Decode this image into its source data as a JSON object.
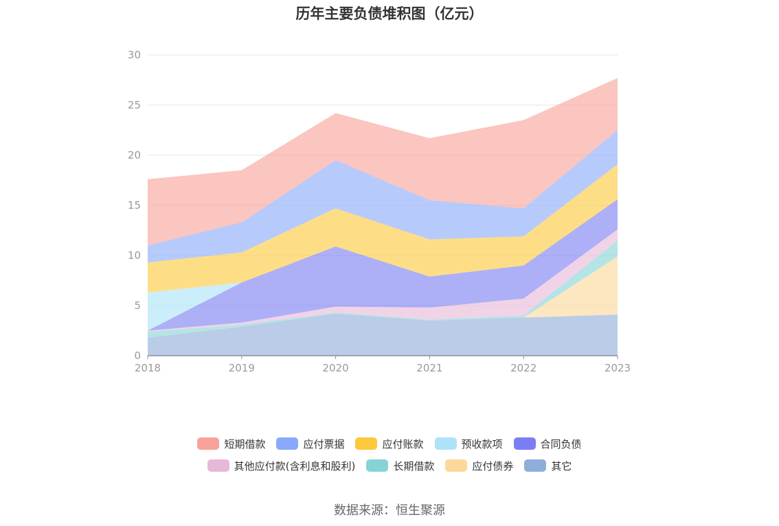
{
  "chart_data": {
    "type": "area",
    "stacked": true,
    "title": "历年主要负债堆积图（亿元）",
    "x": [
      "2018",
      "2019",
      "2020",
      "2021",
      "2022",
      "2023"
    ],
    "ylim": [
      0,
      30
    ],
    "yticks": [
      "0",
      "5",
      "10",
      "15",
      "20",
      "25",
      "30"
    ],
    "grid": true,
    "legend_position": "bottom",
    "series": [
      {
        "name": "其它",
        "color": "#8fadd9",
        "values": [
          1.8,
          2.9,
          4.2,
          3.5,
          3.8,
          4.1
        ]
      },
      {
        "name": "应付债券",
        "color": "#fcd999",
        "values": [
          0,
          0,
          0,
          0,
          0,
          5.8
        ]
      },
      {
        "name": "长期借款",
        "color": "#86d3d6",
        "values": [
          0.6,
          0.2,
          0.1,
          0.1,
          0.2,
          1.6
        ]
      },
      {
        "name": "其他应付款(含利息和股利)",
        "color": "#e8b8d9",
        "values": [
          0.1,
          0.2,
          0.6,
          1.2,
          1.7,
          1.1
        ]
      },
      {
        "name": "合同负债",
        "color": "#7b7ef2",
        "values": [
          0,
          4.0,
          6.0,
          3.1,
          3.3,
          3.0
        ]
      },
      {
        "name": "预收款项",
        "color": "#ade3f8",
        "values": [
          3.8,
          0,
          0,
          0,
          0,
          0
        ]
      },
      {
        "name": "应付账款",
        "color": "#fcc93c",
        "values": [
          3.0,
          3.0,
          3.8,
          3.7,
          2.9,
          3.5
        ]
      },
      {
        "name": "应付票据",
        "color": "#89a9fa",
        "values": [
          1.7,
          3.0,
          4.8,
          3.9,
          2.8,
          3.4
        ]
      },
      {
        "name": "短期借款",
        "color": "#f8a29a",
        "values": [
          6.6,
          5.2,
          4.7,
          6.2,
          8.8,
          5.2
        ]
      }
    ]
  },
  "legend": {
    "rows": [
      [
        {
          "label": "短期借款",
          "color": "#f8a29a"
        },
        {
          "label": "应付票据",
          "color": "#89a9fa"
        },
        {
          "label": "应付账款",
          "color": "#fcc93c"
        },
        {
          "label": "预收款项",
          "color": "#ade3f8"
        },
        {
          "label": "合同负债",
          "color": "#7b7ef2"
        }
      ],
      [
        {
          "label": "其他应付款(含利息和股利)",
          "color": "#e8b8d9"
        },
        {
          "label": "长期借款",
          "color": "#86d3d6"
        },
        {
          "label": "应付债券",
          "color": "#fcd999"
        },
        {
          "label": "其它",
          "color": "#8fadd9"
        }
      ]
    ]
  },
  "source": "数据来源：恒生聚源"
}
